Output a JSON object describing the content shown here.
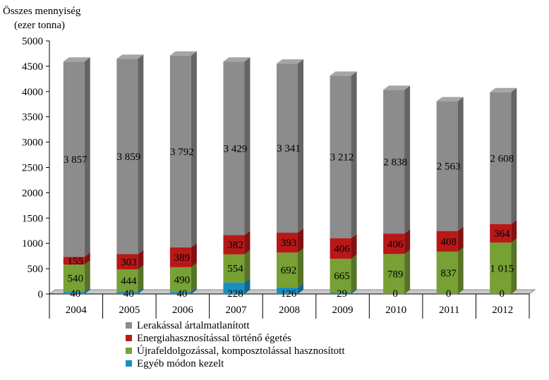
{
  "chart_data": {
    "type": "bar",
    "stacked": true,
    "ylabel_lines": [
      "Összes mennyiség",
      "(ezer tonna)"
    ],
    "categories": [
      "2004",
      "2005",
      "2006",
      "2007",
      "2008",
      "2009",
      "2010",
      "2011",
      "2012"
    ],
    "ylim": [
      0,
      5000
    ],
    "yticks": [
      0,
      500,
      1000,
      1500,
      2000,
      2500,
      3000,
      3500,
      4000,
      4500,
      5000
    ],
    "grid": false,
    "legend_position": "bottom-left",
    "series": [
      {
        "name": "Egyéb módon kezelt",
        "color": "#1a8fbf",
        "values": [
          40,
          40,
          40,
          228,
          126,
          29,
          0,
          0,
          0
        ],
        "labels": [
          "40",
          "40",
          "40",
          "228",
          "126",
          "29",
          "0",
          "0",
          "0"
        ]
      },
      {
        "name": "Újrafeldolgozással, komposztolással hasznosított",
        "color": "#77a035",
        "values": [
          540,
          444,
          490,
          554,
          692,
          665,
          789,
          837,
          1015
        ],
        "labels": [
          "540",
          "444",
          "490",
          "554",
          "692",
          "665",
          "789",
          "837",
          "1 015"
        ]
      },
      {
        "name": "Energiahasznosítással történő égetés",
        "color": "#b81818",
        "values": [
          155,
          303,
          389,
          382,
          393,
          406,
          406,
          408,
          364
        ],
        "labels": [
          "155",
          "303",
          "389",
          "382",
          "393",
          "406",
          "406",
          "408",
          "364"
        ]
      },
      {
        "name": "Lerakással ártalmatlanított",
        "color": "#8c8c8c",
        "values": [
          3857,
          3859,
          3792,
          3429,
          3341,
          3212,
          2838,
          2563,
          2608
        ],
        "labels": [
          "3 857",
          "3 859",
          "3 792",
          "3 429",
          "3 341",
          "3 212",
          "2 838",
          "2 563",
          "2 608"
        ]
      }
    ],
    "legend_order": [
      "Lerakással ártalmatlanított",
      "Energiahasznosítással történő égetés",
      "Újrafeldolgozással, komposztolással hasznosított",
      "Egyéb módon kezelt"
    ]
  }
}
